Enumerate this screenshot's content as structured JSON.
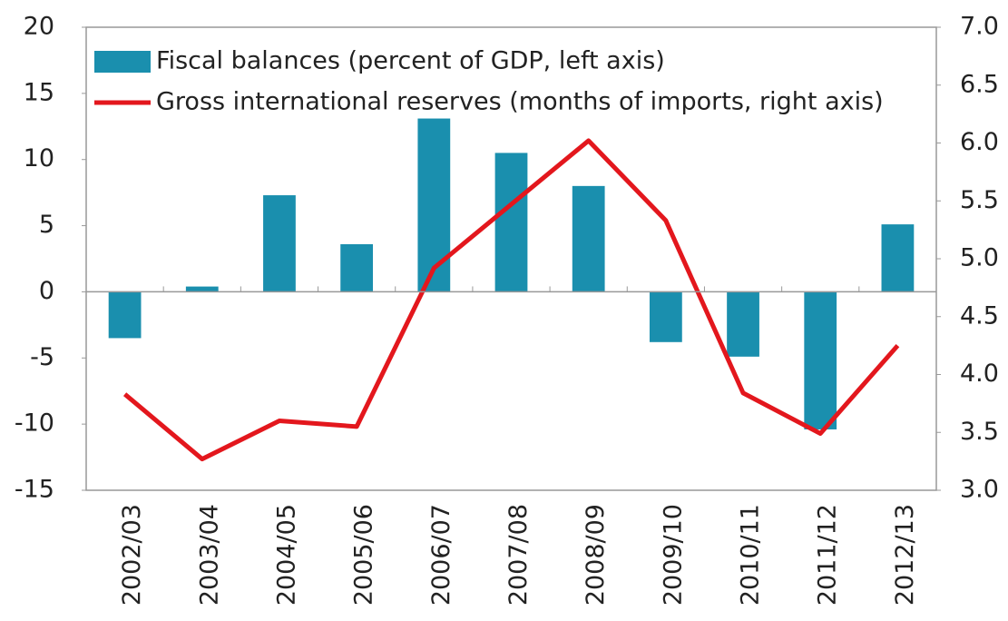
{
  "chart_data": {
    "type": "bar_line",
    "categories": [
      "2002/03",
      "2003/04",
      "2004/05",
      "2005/06",
      "2006/07",
      "2007/08",
      "2008/09",
      "2009/10",
      "2010/11",
      "2011/12",
      "2012/13"
    ],
    "series": [
      {
        "name": "Fiscal balances (percent of GDP, left axis)",
        "type": "bar",
        "color": "#1a8fae",
        "values": [
          -3.5,
          0.4,
          7.3,
          3.6,
          13.1,
          10.5,
          8.0,
          -3.8,
          -4.9,
          -10.4,
          5.1
        ]
      },
      {
        "name": "Gross international reserves (months of imports, right axis)",
        "type": "line",
        "axis": "y2",
        "color": "#e3171d",
        "values": [
          3.83,
          3.27,
          3.6,
          3.55,
          4.92,
          5.47,
          6.02,
          5.33,
          3.84,
          3.49,
          4.25
        ]
      }
    ],
    "ylim": [
      -15,
      20
    ],
    "yticks": [
      -15,
      -10,
      -5,
      0,
      5,
      10,
      15,
      20
    ],
    "y2lim": [
      3,
      7
    ],
    "y2ticks": [
      {
        "value": 3,
        "label": "3.0"
      },
      3.5,
      {
        "value": 4,
        "label": "4.0"
      },
      4.5,
      {
        "value": 5,
        "label": "5.0"
      },
      5.5,
      {
        "value": 6,
        "label": "6.0"
      },
      6.5,
      {
        "value": 7,
        "label": "7.0"
      }
    ],
    "legend": "top-left"
  }
}
